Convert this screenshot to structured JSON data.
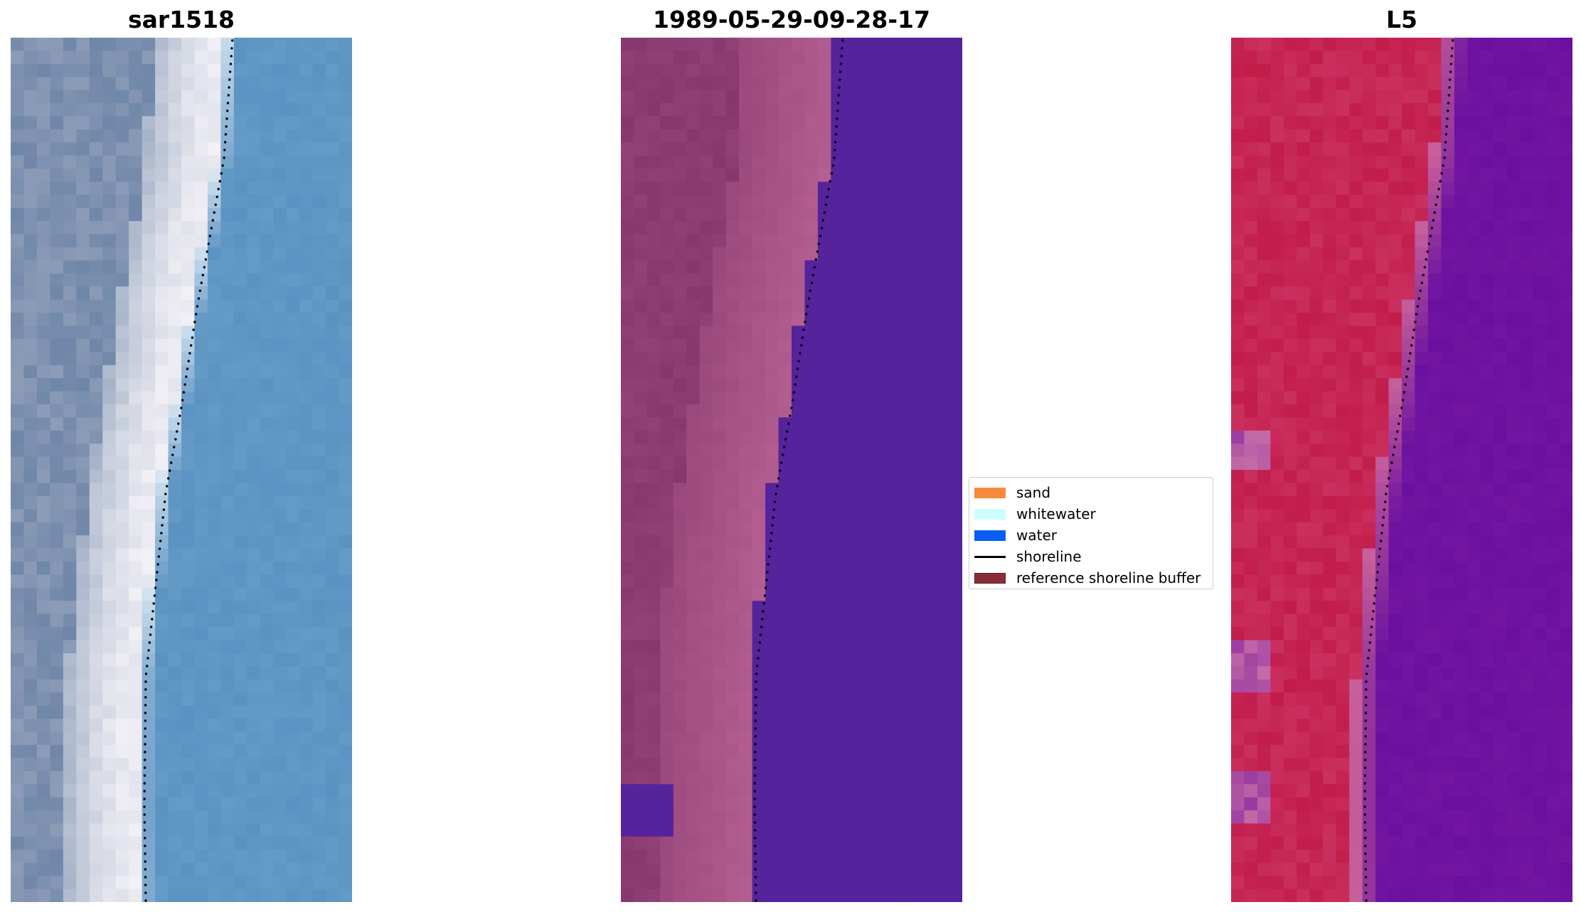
{
  "panels": [
    {
      "title": "sar1518",
      "kind": "rgb"
    },
    {
      "title": "1989-05-29-09-28-17",
      "kind": "classified"
    },
    {
      "title": "L5",
      "kind": "index"
    }
  ],
  "legend": {
    "items": [
      {
        "label": "sand",
        "color": "#f98a3c",
        "style": "patch"
      },
      {
        "label": "whitewater",
        "color": "#cdfdfd",
        "style": "patch"
      },
      {
        "label": "water",
        "color": "#0a5ef5",
        "style": "patch"
      },
      {
        "label": "shoreline",
        "color": "#000000",
        "style": "line"
      },
      {
        "label": "reference shoreline buffer",
        "color": "#8b2d38",
        "style": "patch"
      }
    ]
  },
  "colors": {
    "rgb_land": "#6f86a8",
    "rgb_beach": "#f3f1f6",
    "rgb_water": "#5a92c2",
    "classified_land": "#86386d",
    "classified_sand": "#b55f92",
    "classified_water": "#55239b",
    "index_land": "#c21c4b",
    "index_water": "#6a10a0",
    "shoreline": "#000000"
  }
}
